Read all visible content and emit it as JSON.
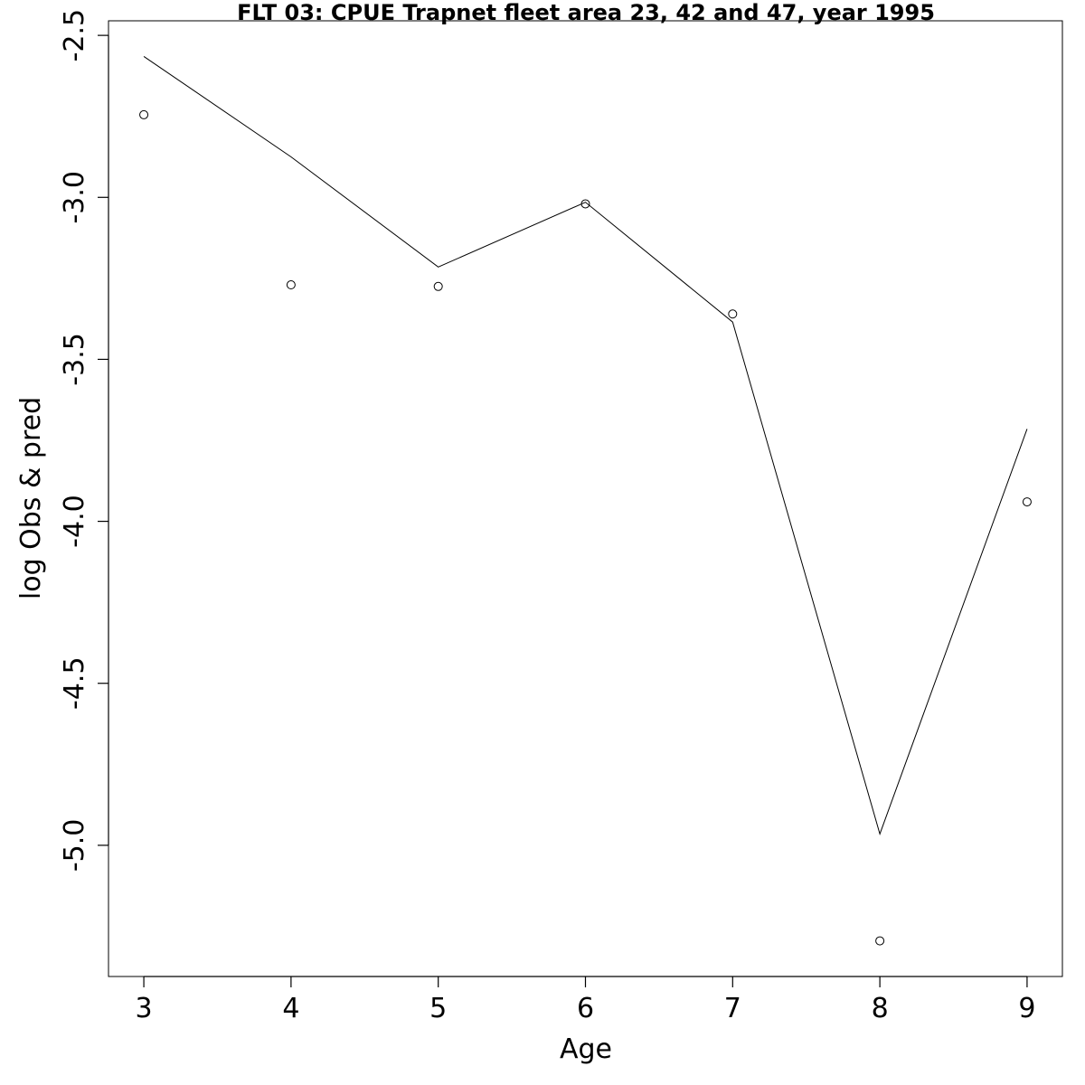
{
  "chart_data": {
    "type": "line",
    "title": "FLT 03: CPUE Trapnet fleet area 23, 42 and 47, year 1995",
    "xlabel": "Age",
    "ylabel": "log Obs & pred",
    "x": [
      3,
      4,
      5,
      6,
      7,
      8,
      9
    ],
    "x_ticks": [
      3,
      4,
      5,
      6,
      7,
      8,
      9
    ],
    "y_ticks": [
      -2.5,
      -3.0,
      -3.5,
      -4.0,
      -4.5,
      -5.0
    ],
    "y_tick_labels": [
      "-2.5",
      "-3.0",
      "-3.5",
      "-4.0",
      "-4.5",
      "-5.0"
    ],
    "xlim": [
      2.76,
      9.24
    ],
    "ylim": [
      -5.405,
      -2.455
    ],
    "series": [
      {
        "role": "predicted",
        "style": "line",
        "values": [
          -2.565,
          -2.875,
          -3.215,
          -3.015,
          -3.385,
          -4.965,
          -3.715
        ]
      },
      {
        "role": "observed",
        "style": "open-circle",
        "values": [
          -2.745,
          -3.27,
          -3.275,
          -3.02,
          -3.36,
          -5.295,
          -3.94
        ]
      }
    ],
    "grid": false,
    "legend": "none"
  }
}
